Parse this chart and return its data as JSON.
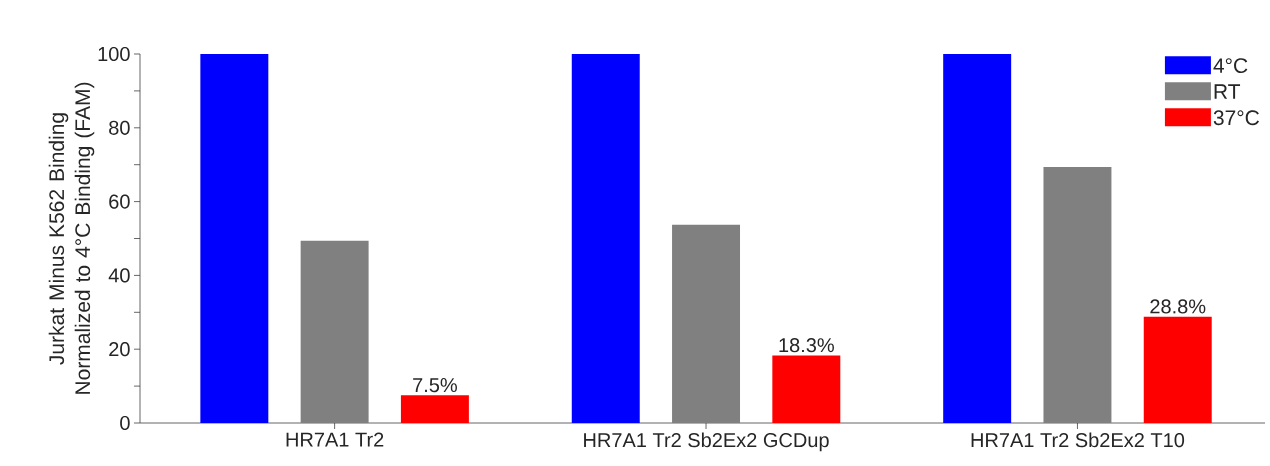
{
  "chart_data": {
    "type": "bar",
    "ylabel": "Jurkat Minus K562 Binding Normalized to 4°C Binding (FAM)",
    "categories": [
      "HR7A1 Tr2",
      "HR7A1 Tr2 Sb2Ex2 GCDup",
      "HR7A1 Tr2 Sb2Ex2 T10"
    ],
    "series": [
      {
        "name": "4°C",
        "color": "#0000ff",
        "values": [
          100,
          100,
          100
        ]
      },
      {
        "name": "RT",
        "color": "#808080",
        "values": [
          49.4,
          53.7,
          69.4
        ]
      },
      {
        "name": "37°C",
        "color": "#ff0000",
        "values": [
          7.5,
          18.3,
          28.8
        ],
        "value_labels": [
          "7.5%",
          "18.3%",
          "28.8%"
        ]
      }
    ],
    "ylim": [
      0,
      100
    ],
    "yticks": [
      0,
      {
        "value": 10,
        "label": null
      },
      20,
      {
        "value": 30,
        "label": null
      },
      40,
      {
        "value": 50,
        "label": null
      },
      60,
      {
        "value": 70,
        "label": null
      },
      80,
      {
        "value": 90,
        "label": null
      },
      100
    ],
    "legend": "top right"
  }
}
